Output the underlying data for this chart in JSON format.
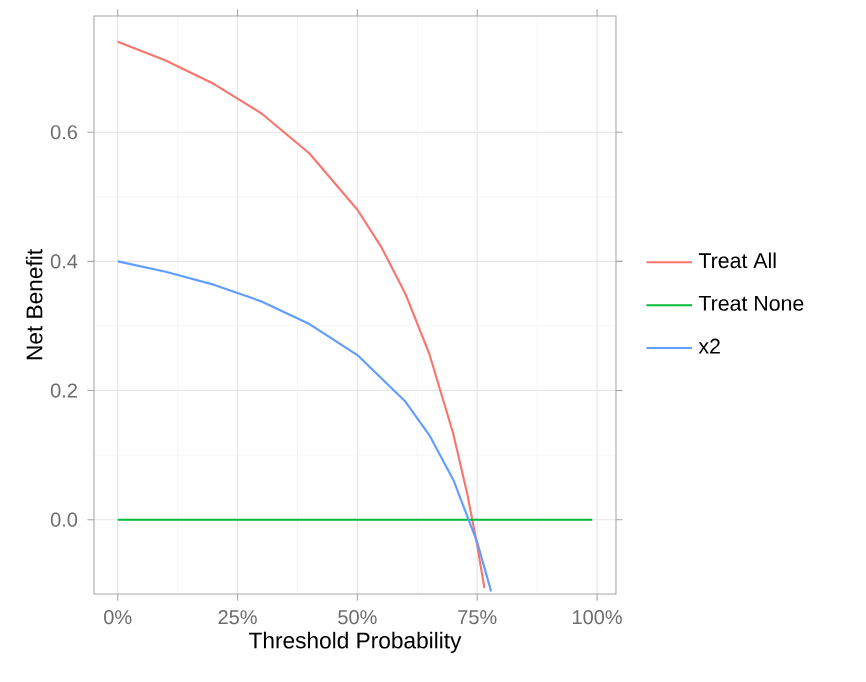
{
  "chart_data": {
    "type": "line",
    "xlabel": "Threshold Probability",
    "ylabel": "Net Benefit",
    "xlim": [
      -0.0495,
      1.0395
    ],
    "ylim": [
      -0.115,
      0.78
    ],
    "xticks": [
      {
        "value": 0,
        "label": "0%"
      },
      {
        "value": 0.25,
        "label": "25%"
      },
      {
        "value": 0.5,
        "label": "50%"
      },
      {
        "value": 0.75,
        "label": "75%"
      },
      {
        "value": 1,
        "label": "100%"
      }
    ],
    "yticks": [
      {
        "value": 0,
        "label": "0.0"
      },
      {
        "value": 0.2,
        "label": "0.2"
      },
      {
        "value": 0.4,
        "label": "0.4"
      },
      {
        "value": 0.6,
        "label": "0.6"
      }
    ],
    "grid": true,
    "legend": "right",
    "line_style": "solid",
    "marker": "none",
    "series": [
      {
        "name": "Treat All",
        "color": "#f8766d",
        "x": [
          0,
          0.1,
          0.2,
          0.3,
          0.4,
          0.5,
          0.55,
          0.6,
          0.65,
          0.7,
          0.73,
          0.75,
          0.765
        ],
        "values": [
          0.74,
          0.711,
          0.675,
          0.629,
          0.567,
          0.48,
          0.422,
          0.35,
          0.257,
          0.133,
          0.037,
          -0.04,
          -0.106
        ]
      },
      {
        "name": "Treat None",
        "color": "#00ba38",
        "x": [
          0,
          0.99
        ],
        "values": [
          0,
          0
        ]
      },
      {
        "name": "x2",
        "color": "#619cff",
        "x": [
          0,
          0.1,
          0.2,
          0.3,
          0.4,
          0.5,
          0.6,
          0.65,
          0.7,
          0.75,
          0.779
        ],
        "values": [
          0.4,
          0.384,
          0.364,
          0.338,
          0.303,
          0.255,
          0.183,
          0.131,
          0.062,
          -0.035,
          -0.111
        ]
      }
    ]
  }
}
